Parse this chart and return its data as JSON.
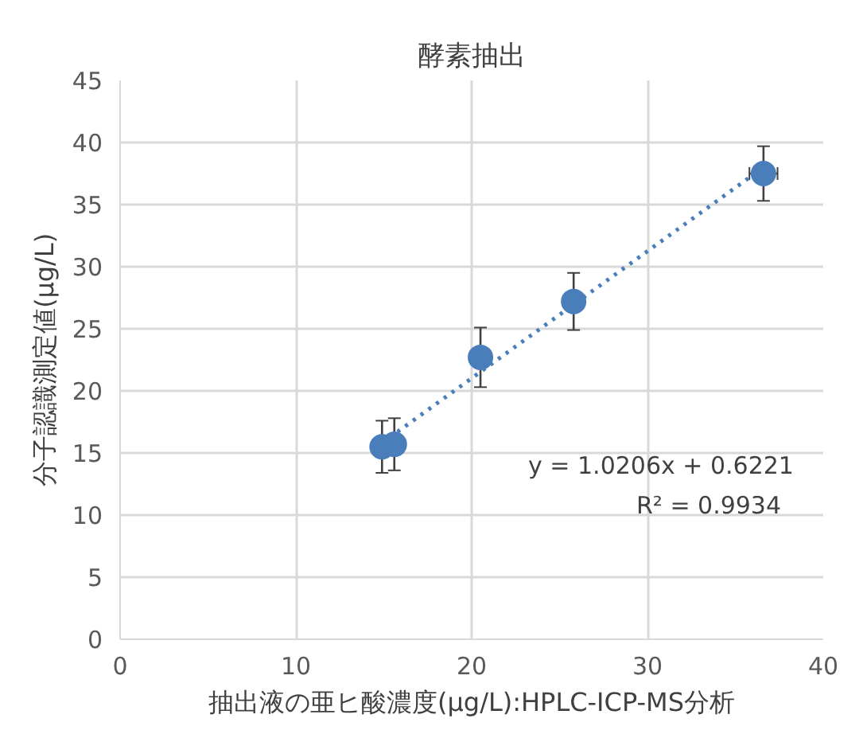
{
  "chart_data": {
    "type": "scatter",
    "title": "酵素抽出",
    "xlabel": "抽出液の亜ヒ酸濃度(μg/L):HPLC-ICP-MS分析",
    "ylabel": "分子認識測定値(μg/L)",
    "xlim": [
      0,
      40
    ],
    "xticks": [
      0,
      10,
      20,
      30,
      40
    ],
    "ylim": [
      0,
      45
    ],
    "yticks": [
      0,
      5,
      10,
      15,
      20,
      25,
      30,
      35,
      40,
      45
    ],
    "grid": true,
    "marker": "circle",
    "series": [
      {
        "color": "#4a7ebb",
        "x": [
          14.9,
          15.6,
          20.5,
          25.8,
          36.6
        ],
        "values": [
          15.5,
          15.7,
          22.7,
          27.2,
          37.5
        ],
        "errors": [
          2.1,
          2.1,
          2.4,
          2.3,
          2.2
        ],
        "xerrors": [
          null,
          null,
          null,
          null,
          0.8
        ]
      },
      {
        "type": "line",
        "color": "#4a7ebb",
        "line_style": "dotted",
        "marker": "none",
        "x": [
          14.9,
          36.6
        ],
        "values": [
          15.8,
          38.0
        ]
      }
    ],
    "annotations": [
      "y = 1.0206x + 0.6221",
      "R² = 0.9934"
    ]
  }
}
